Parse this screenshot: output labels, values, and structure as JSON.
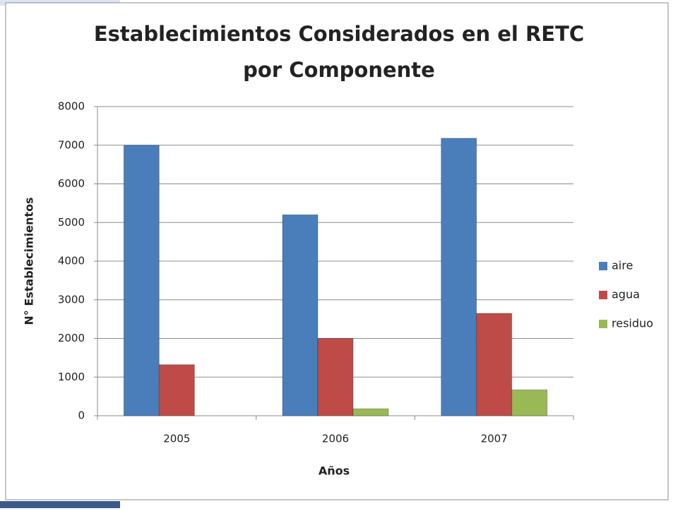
{
  "chart_data": {
    "type": "bar",
    "title": [
      "Establecimientos Considerados en el RETC",
      "por Componente"
    ],
    "x_label": "Años",
    "y_label": "N° Establecimientos",
    "categories": [
      "2005",
      "2006",
      "2007"
    ],
    "series": [
      {
        "name": "aire",
        "color": "#4a7ebb",
        "values": [
          7000,
          5200,
          7180
        ]
      },
      {
        "name": "agua",
        "color": "#be4b48",
        "values": [
          1320,
          2000,
          2650
        ]
      },
      {
        "name": "residuo",
        "color": "#98b954",
        "values": [
          0,
          180,
          670
        ]
      }
    ],
    "ylim": [
      0,
      8000
    ],
    "yticks": [
      0,
      1000,
      2000,
      3000,
      4000,
      5000,
      6000,
      7000,
      8000
    ],
    "grid": true,
    "legend": "right"
  }
}
